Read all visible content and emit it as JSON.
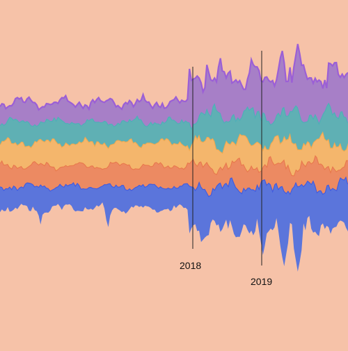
{
  "chart_data": {
    "type": "area",
    "title": "",
    "xlabel": "",
    "ylabel": "",
    "grid": false,
    "legend": "none",
    "background": "#f6c2a8",
    "markers": [
      {
        "label": "2018"
      },
      {
        "label": "2019"
      }
    ],
    "series": [
      {
        "color": "#5b75db",
        "stroke": "#3f5ae0"
      },
      {
        "color": "#ec8a62",
        "stroke": "#e8784c"
      },
      {
        "color": "#f4b66c",
        "stroke": "#f0a94f"
      },
      {
        "color": "#5fb0b4",
        "stroke": "#4cb0b8"
      },
      {
        "color": "#a77fc7",
        "stroke": "#9b5fd6"
      }
    ]
  }
}
